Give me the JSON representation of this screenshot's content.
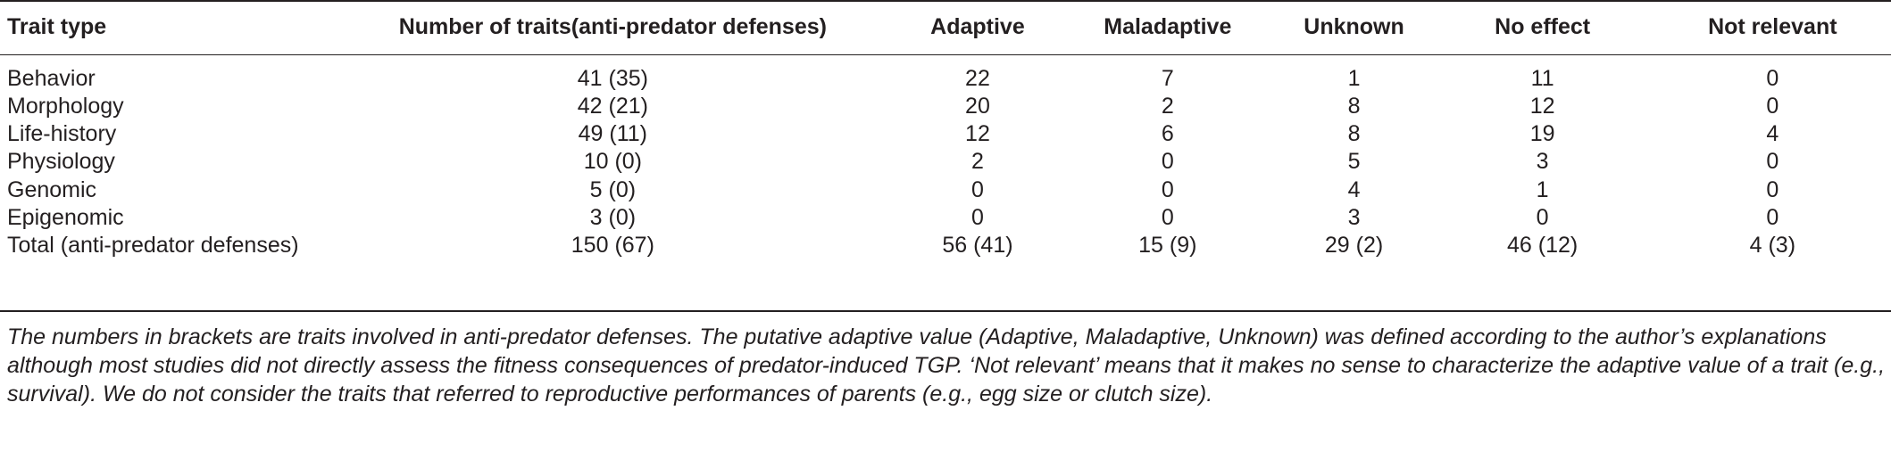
{
  "table": {
    "headers": [
      "Trait type",
      "Number of traits(anti-predator defenses)",
      "Adaptive",
      "Maladaptive",
      "Unknown",
      "No effect",
      "Not relevant"
    ],
    "rows": [
      [
        "Behavior",
        "41 (35)",
        "22",
        "7",
        "1",
        "11",
        "0"
      ],
      [
        "Morphology",
        "42 (21)",
        "20",
        "2",
        "8",
        "12",
        "0"
      ],
      [
        "Life-history",
        "49 (11)",
        "12",
        "6",
        "8",
        "19",
        "4"
      ],
      [
        "Physiology",
        "10 (0)",
        "2",
        "0",
        "5",
        "3",
        "0"
      ],
      [
        "Genomic",
        "5 (0)",
        "0",
        "0",
        "4",
        "1",
        "0"
      ],
      [
        "Epigenomic",
        "3 (0)",
        "0",
        "0",
        "3",
        "0",
        "0"
      ],
      [
        "Total (anti-predator defenses)",
        "150 (67)",
        "56 (41)",
        "15 (9)",
        "29 (2)",
        "46 (12)",
        "4 (3)"
      ]
    ]
  },
  "footnote": "The numbers in brackets are traits involved in anti-predator defenses. The putative adaptive value (Adaptive, Maladaptive, Unknown) was defined according to the author’s explanations although most studies did not directly assess the fitness consequences of predator-induced TGP. ‘Not relevant’ means that it makes no sense to characterize the adaptive value of a trait (e.g., survival). We do not consider the traits that referred to reproductive performances of parents (e.g., egg size or clutch size)."
}
